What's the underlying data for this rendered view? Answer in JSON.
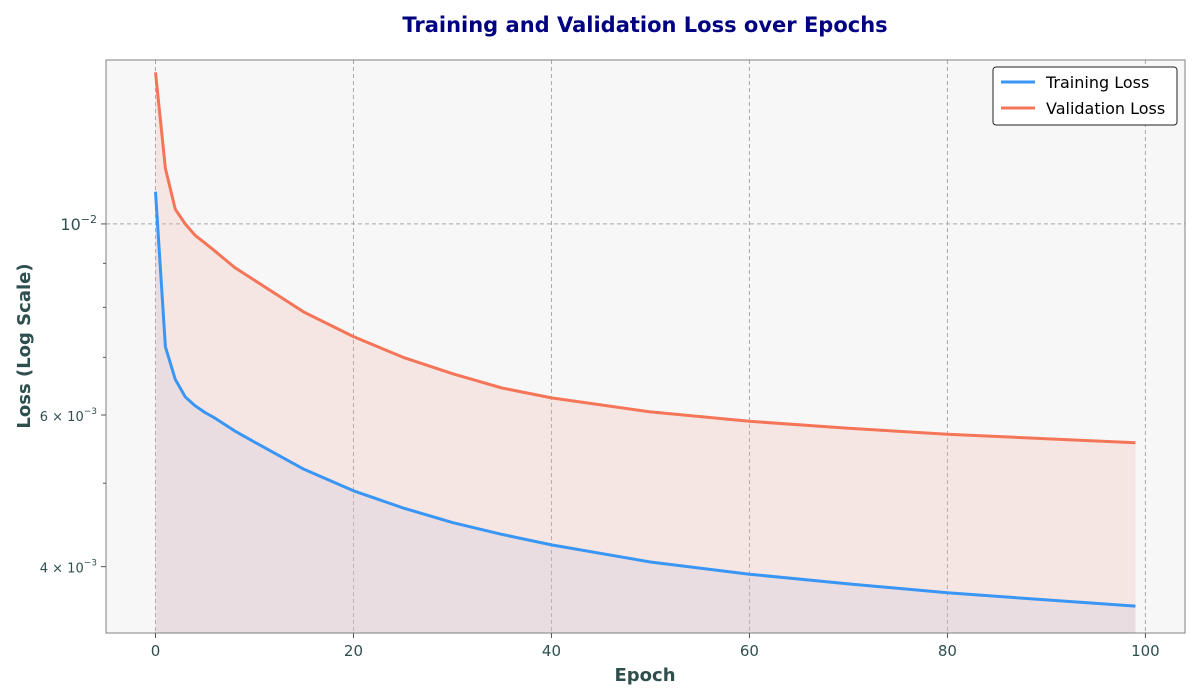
{
  "chart_data": {
    "type": "line",
    "title": "Training and Validation Loss over Epochs",
    "xlabel": "Epoch",
    "ylabel": "Loss (Log Scale)",
    "yscale": "log",
    "xlim": [
      -5,
      104
    ],
    "ylim": [
      0.00335,
      0.0155
    ],
    "xticks": [
      0,
      20,
      40,
      60,
      80,
      100
    ],
    "xtick_labels": [
      "0",
      "20",
      "40",
      "60",
      "80",
      "100"
    ],
    "yticks": [
      {
        "value": 0.01,
        "mantissa": "",
        "exponent": "−2"
      },
      {
        "value": 0.006,
        "mantissa": "6",
        "exponent": "−3"
      },
      {
        "value": 0.004,
        "mantissa": "4",
        "exponent": "−3"
      }
    ],
    "y_minor_ticks": [
      0.005,
      0.007,
      0.008,
      0.009
    ],
    "grid": true,
    "legend_position": "top-right",
    "series": [
      {
        "name": "Training Loss",
        "color": "#3a96f5",
        "fill_color": "#b5c6f0",
        "x": [
          0,
          1,
          2,
          3,
          4,
          5,
          6,
          8,
          10,
          15,
          20,
          25,
          30,
          35,
          40,
          50,
          60,
          70,
          80,
          90,
          99
        ],
        "values": [
          0.0109,
          0.0072,
          0.0066,
          0.0063,
          0.00615,
          0.00604,
          0.00595,
          0.00575,
          0.00558,
          0.00519,
          0.0049,
          0.00468,
          0.0045,
          0.00436,
          0.00424,
          0.00405,
          0.00392,
          0.00382,
          0.00373,
          0.00366,
          0.0036
        ]
      },
      {
        "name": "Validation Loss",
        "color": "#f57558",
        "fill_color": "#f5b5a8",
        "x": [
          0,
          1,
          2,
          3,
          4,
          5,
          6,
          8,
          10,
          15,
          20,
          25,
          30,
          35,
          40,
          50,
          60,
          70,
          80,
          90,
          99
        ],
        "values": [
          0.015,
          0.0116,
          0.0104,
          0.01,
          0.0097,
          0.0095,
          0.0093,
          0.0089,
          0.0086,
          0.0079,
          0.0074,
          0.007,
          0.0067,
          0.00645,
          0.00628,
          0.00605,
          0.0059,
          0.00579,
          0.0057,
          0.00563,
          0.00557
        ]
      }
    ]
  }
}
